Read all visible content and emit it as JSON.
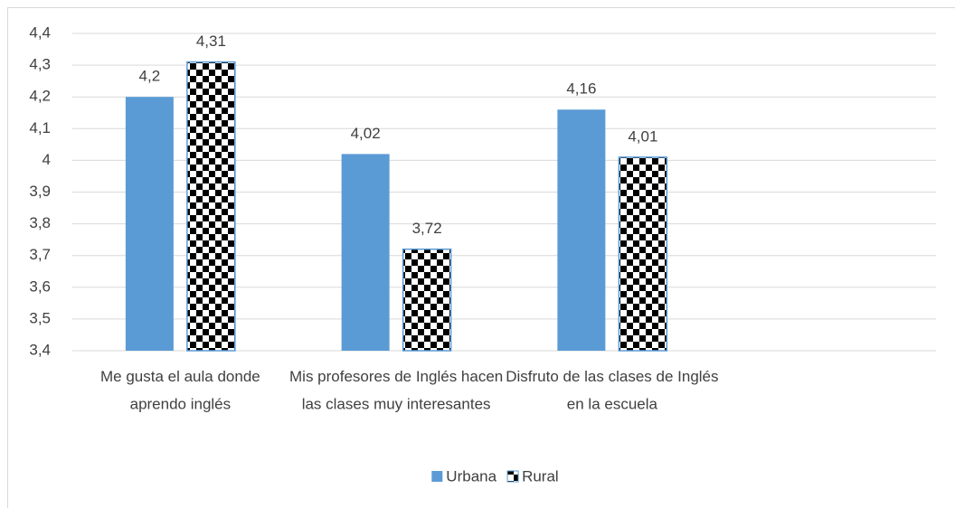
{
  "chart_data": {
    "type": "bar",
    "categories": [
      "Me gusta el aula donde aprendo inglés",
      "Mis profesores de Inglés hacen las clases muy interesantes",
      "Disfruto de las clases de Inglés en la escuela",
      null
    ],
    "series": [
      {
        "name": "Urbana",
        "color": "#5b9bd5",
        "values": [
          4.2,
          4.02,
          4.16,
          null
        ],
        "value_labels": [
          "4,2",
          "4,02",
          "4,16",
          null
        ]
      },
      {
        "name": "Rural",
        "color": "#000000",
        "pattern": "checkerboard",
        "values": [
          4.31,
          3.72,
          4.01,
          null
        ],
        "value_labels": [
          "4,31",
          "3,72",
          "4,01",
          null
        ]
      }
    ],
    "ylim": [
      3.4,
      4.4
    ],
    "yticks": [
      {
        "value": 3.4,
        "label": "3,4"
      },
      {
        "value": 3.5,
        "label": "3,5"
      },
      {
        "value": 3.6,
        "label": "3,6"
      },
      {
        "value": 3.7,
        "label": "3,7"
      },
      {
        "value": 3.8,
        "label": "3,8"
      },
      {
        "value": 3.9,
        "label": "3,9"
      },
      4,
      {
        "value": 4.1,
        "label": "4,1"
      },
      {
        "value": 4.2,
        "label": "4,2"
      },
      {
        "value": 4.3,
        "label": "4,3"
      },
      {
        "value": 4.4,
        "label": "4,4"
      }
    ],
    "grid": true,
    "legend": "bottom"
  }
}
